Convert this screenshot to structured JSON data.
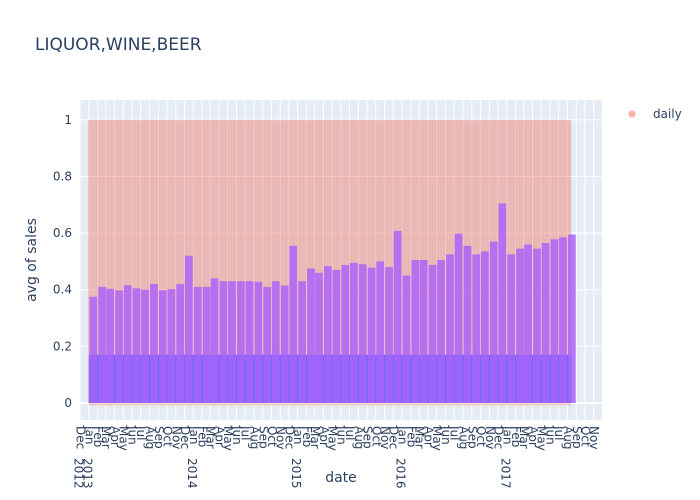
{
  "chart_data": {
    "type": "bar",
    "title": "LIQUOR,WINE,BEER",
    "xlabel": "date",
    "ylabel": "avg of sales",
    "ylim": [
      -0.06,
      1.07
    ],
    "yticks": [
      0,
      0.2,
      0.4,
      0.6,
      0.8,
      1
    ],
    "ytick_labels": [
      "0",
      "0.2",
      "0.4",
      "0.6",
      "0.8",
      "1"
    ],
    "xlim": [
      "2012-12-01",
      "2017-11-30"
    ],
    "grid": true,
    "legend": {
      "position": "top-right",
      "entries": [
        {
          "name": "daily",
          "color": "#EF553B"
        }
      ]
    },
    "xtick_labels": [
      {
        "date": "2012-12-01",
        "label": "Dec"
      },
      {
        "date": "2013-01-01",
        "label": "Jan"
      },
      {
        "date": "2013-02-01",
        "label": "Feb"
      },
      {
        "date": "2013-03-01",
        "label": "Mar"
      },
      {
        "date": "2013-04-01",
        "label": "Apr"
      },
      {
        "date": "2013-05-01",
        "label": "May"
      },
      {
        "date": "2013-06-01",
        "label": "Jun"
      },
      {
        "date": "2013-07-01",
        "label": "Jul"
      },
      {
        "date": "2013-08-01",
        "label": "Aug"
      },
      {
        "date": "2013-09-01",
        "label": "Sep"
      },
      {
        "date": "2013-10-01",
        "label": "Oct"
      },
      {
        "date": "2013-11-01",
        "label": "Nov"
      },
      {
        "date": "2013-12-01",
        "label": "Dec"
      },
      {
        "date": "2014-01-01",
        "label": "Jan"
      },
      {
        "date": "2014-02-01",
        "label": "Feb"
      },
      {
        "date": "2014-03-01",
        "label": "Mar"
      },
      {
        "date": "2014-04-01",
        "label": "Apr"
      },
      {
        "date": "2014-05-01",
        "label": "May"
      },
      {
        "date": "2014-06-01",
        "label": "Jun"
      },
      {
        "date": "2014-07-01",
        "label": "Jul"
      },
      {
        "date": "2014-08-01",
        "label": "Aug"
      },
      {
        "date": "2014-09-01",
        "label": "Sep"
      },
      {
        "date": "2014-10-01",
        "label": "Oct"
      },
      {
        "date": "2014-11-01",
        "label": "Nov"
      },
      {
        "date": "2014-12-01",
        "label": "Dec"
      },
      {
        "date": "2015-01-01",
        "label": "Jan"
      },
      {
        "date": "2015-02-01",
        "label": "Feb"
      },
      {
        "date": "2015-03-01",
        "label": "Mar"
      },
      {
        "date": "2015-04-01",
        "label": "Apr"
      },
      {
        "date": "2015-05-01",
        "label": "May"
      },
      {
        "date": "2015-06-01",
        "label": "Jun"
      },
      {
        "date": "2015-07-01",
        "label": "Jul"
      },
      {
        "date": "2015-08-01",
        "label": "Aug"
      },
      {
        "date": "2015-09-01",
        "label": "Sep"
      },
      {
        "date": "2015-10-01",
        "label": "Oct"
      },
      {
        "date": "2015-11-01",
        "label": "Nov"
      },
      {
        "date": "2015-12-01",
        "label": "Dec"
      },
      {
        "date": "2016-01-01",
        "label": "Jan"
      },
      {
        "date": "2016-02-01",
        "label": "Feb"
      },
      {
        "date": "2016-03-01",
        "label": "Mar"
      },
      {
        "date": "2016-04-01",
        "label": "Apr"
      },
      {
        "date": "2016-05-01",
        "label": "May"
      },
      {
        "date": "2016-06-01",
        "label": "Jun"
      },
      {
        "date": "2016-07-01",
        "label": "Jul"
      },
      {
        "date": "2016-08-01",
        "label": "Aug"
      },
      {
        "date": "2016-09-01",
        "label": "Sep"
      },
      {
        "date": "2016-10-01",
        "label": "Oct"
      },
      {
        "date": "2016-11-01",
        "label": "Nov"
      },
      {
        "date": "2016-12-01",
        "label": "Dec"
      },
      {
        "date": "2017-01-01",
        "label": "Jan"
      },
      {
        "date": "2017-02-01",
        "label": "Feb"
      },
      {
        "date": "2017-03-01",
        "label": "Mar"
      },
      {
        "date": "2017-04-01",
        "label": "Apr"
      },
      {
        "date": "2017-05-01",
        "label": "May"
      },
      {
        "date": "2017-06-01",
        "label": "Jun"
      },
      {
        "date": "2017-07-01",
        "label": "Jul"
      },
      {
        "date": "2017-08-01",
        "label": "Aug"
      },
      {
        "date": "2017-09-01",
        "label": "Sep"
      },
      {
        "date": "2017-10-01",
        "label": "Oct"
      },
      {
        "date": "2017-11-01",
        "label": "Nov"
      }
    ],
    "year_labels": [
      {
        "date": "2012-12-01",
        "label": "2012"
      },
      {
        "date": "2013-01-01",
        "label": "2013"
      },
      {
        "date": "2014-01-01",
        "label": "2014"
      },
      {
        "date": "2015-01-01",
        "label": "2015"
      },
      {
        "date": "2016-01-01",
        "label": "2016"
      },
      {
        "date": "2017-01-01",
        "label": "2017"
      }
    ],
    "series": [
      {
        "type": "scatter",
        "name": "daily",
        "color": "#EF553B",
        "opacity": 0.35,
        "x_start": "2013-01-01",
        "x_end": "2017-08-15",
        "values_description": "",
        "low": 0,
        "mid": 0.17,
        "high": 1.0
      },
      {
        "type": "bar",
        "name": "",
        "color": "#636EFA",
        "x_start": "2013-01-01",
        "x_end": "2017-08-15",
        "value": 0.17
      },
      {
        "type": "bar",
        "name": "",
        "color": "#AB63FA",
        "opacity": 0.85,
        "categories": [
          "2013-01",
          "2013-02",
          "2013-03",
          "2013-04",
          "2013-05",
          "2013-06",
          "2013-07",
          "2013-08",
          "2013-09",
          "2013-10",
          "2013-11",
          "2013-12",
          "2014-01",
          "2014-02",
          "2014-03",
          "2014-04",
          "2014-05",
          "2014-06",
          "2014-07",
          "2014-08",
          "2014-09",
          "2014-10",
          "2014-11",
          "2014-12",
          "2015-01",
          "2015-02",
          "2015-03",
          "2015-04",
          "2015-05",
          "2015-06",
          "2015-07",
          "2015-08",
          "2015-09",
          "2015-10",
          "2015-11",
          "2015-12",
          "2016-01",
          "2016-02",
          "2016-03",
          "2016-04",
          "2016-05",
          "2016-06",
          "2016-07",
          "2016-08",
          "2016-09",
          "2016-10",
          "2016-11",
          "2016-12",
          "2017-01",
          "2017-02",
          "2017-03",
          "2017-04",
          "2017-05",
          "2017-06",
          "2017-07",
          "2017-08"
        ],
        "values": [
          0.375,
          0.41,
          0.403,
          0.398,
          0.416,
          0.405,
          0.4,
          0.42,
          0.398,
          0.402,
          0.42,
          0.52,
          0.41,
          0.41,
          0.44,
          0.43,
          0.43,
          0.43,
          0.43,
          0.428,
          0.41,
          0.43,
          0.415,
          0.555,
          0.43,
          0.475,
          0.46,
          0.483,
          0.47,
          0.487,
          0.495,
          0.49,
          0.478,
          0.5,
          0.48,
          0.608,
          0.45,
          0.505,
          0.505,
          0.488,
          0.505,
          0.525,
          0.598,
          0.555,
          0.525,
          0.535,
          0.57,
          0.705,
          0.525,
          0.545,
          0.56,
          0.545,
          0.565,
          0.578,
          0.585,
          0.595
        ]
      }
    ]
  }
}
